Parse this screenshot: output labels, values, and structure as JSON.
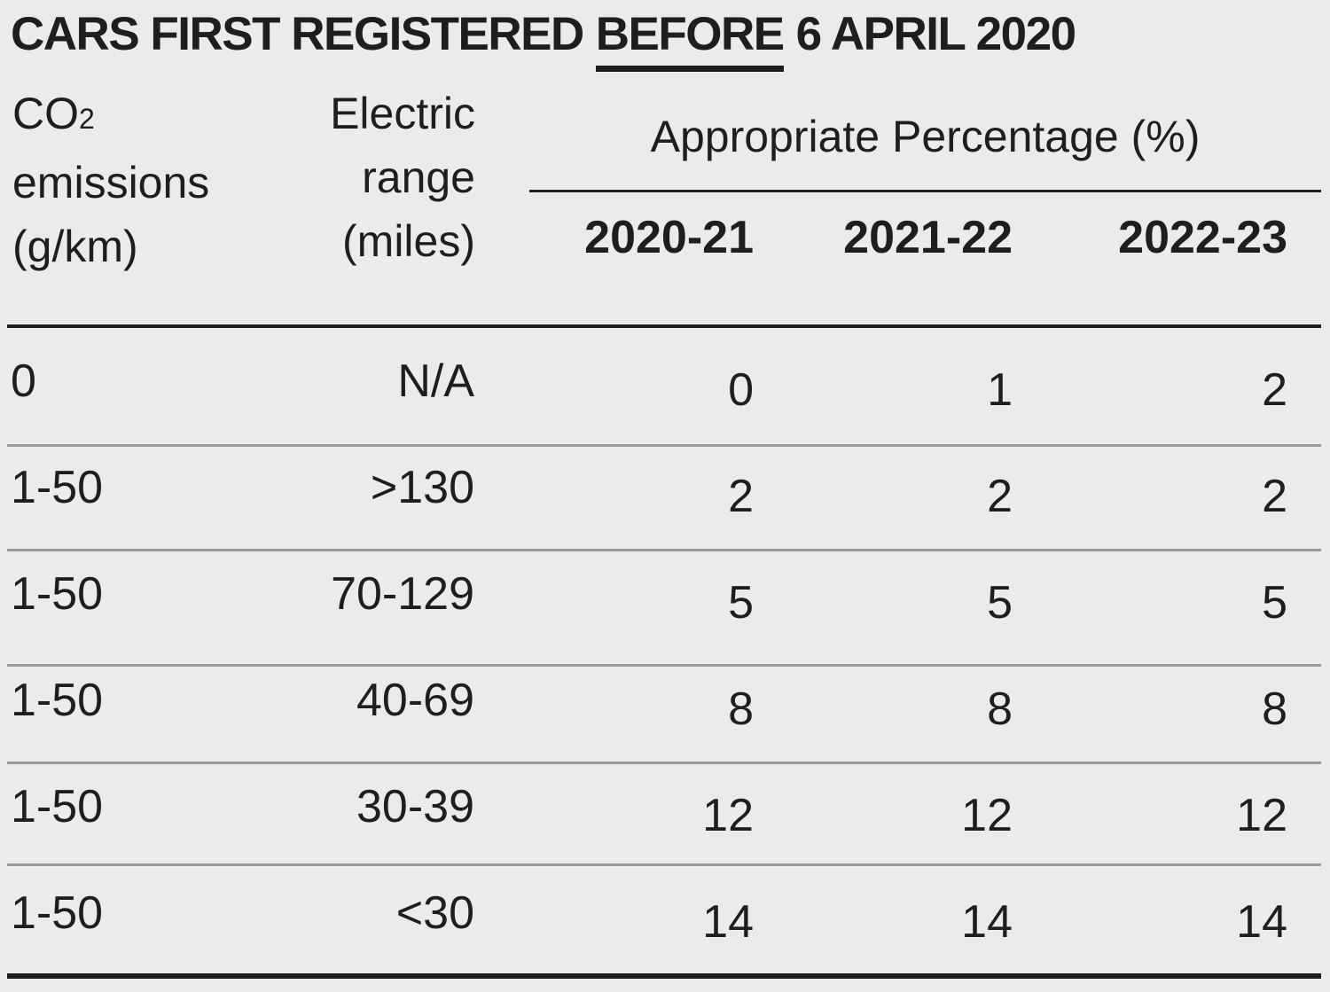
{
  "title": {
    "lead": "CARS FIRST REGISTERED",
    "emphasis": "BEFORE",
    "tail": "6 APRIL 2020"
  },
  "table": {
    "headers": {
      "co2": {
        "main": "CO",
        "subscript": "2",
        "rest": "emissions (g/km)"
      },
      "range": "Electric range (miles)",
      "group": "Appropriate Percentage (%)",
      "years": [
        "2020-21",
        "2021-22",
        "2022-23"
      ]
    },
    "rows": [
      [
        "0",
        "N/A",
        0,
        1,
        2
      ],
      [
        "1-50",
        ">130",
        2,
        2,
        2
      ],
      [
        "1-50",
        "70-129",
        5,
        5,
        5
      ],
      [
        "1-50",
        "40-69",
        8,
        8,
        8
      ],
      [
        "1-50",
        "30-39",
        12,
        12,
        12
      ],
      [
        "1-50",
        "<30",
        14,
        14,
        14
      ]
    ]
  }
}
